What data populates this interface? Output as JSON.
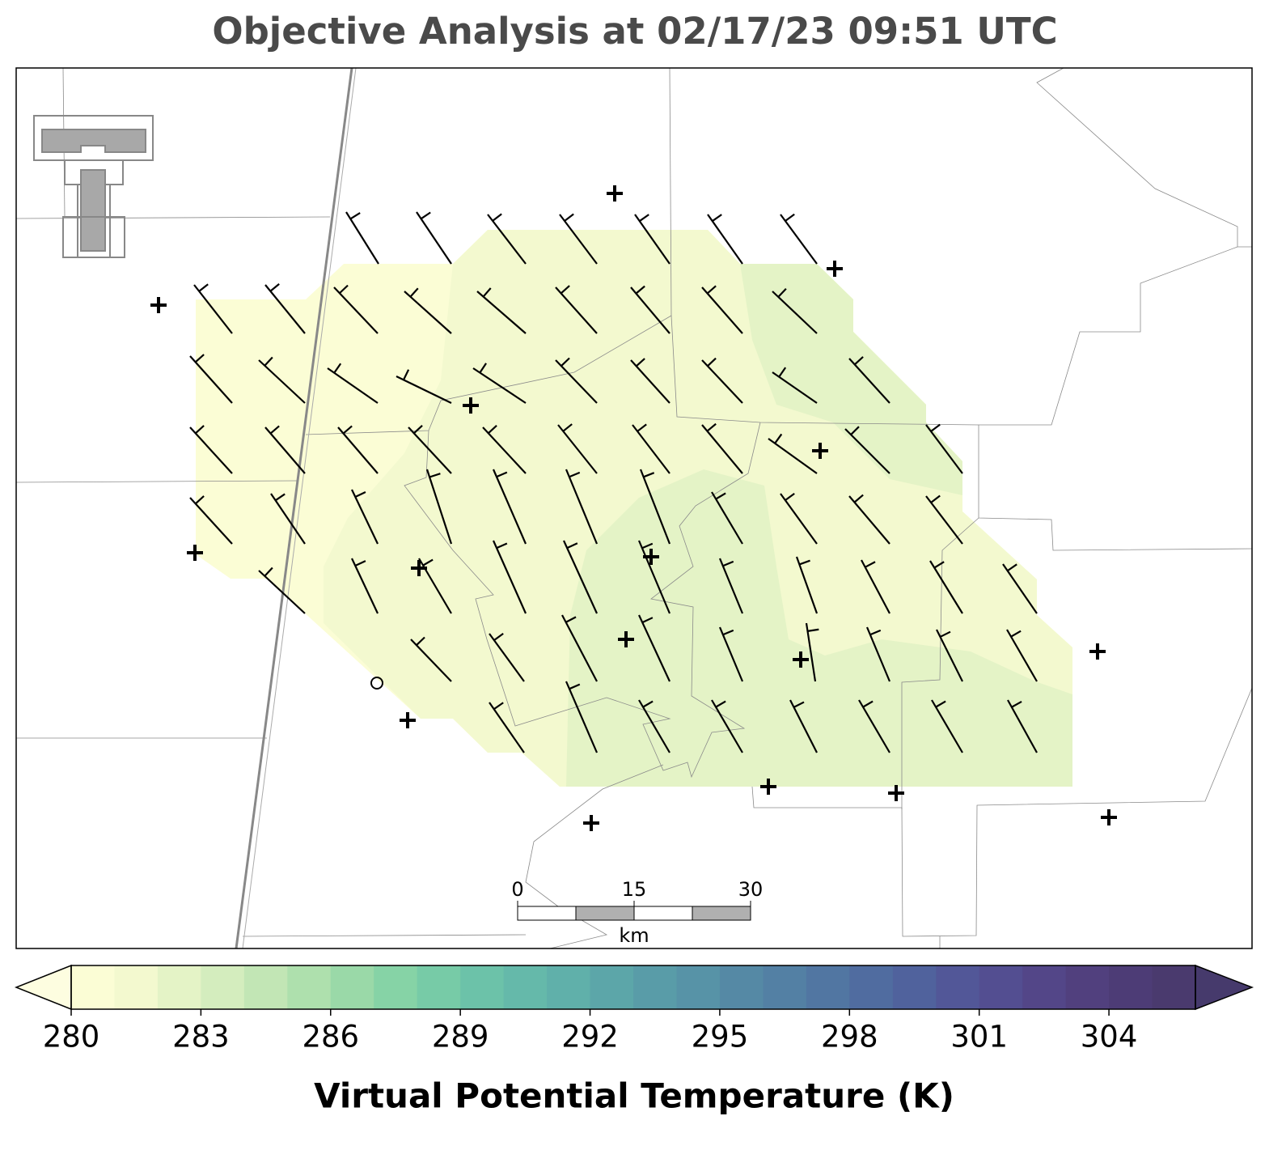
{
  "chart_data": {
    "type": "contour-map",
    "title": "Objective Analysis at 02/17/23 09:51 UTC",
    "colorbar": {
      "label": "Virtual Potential Temperature (K)",
      "lim": [
        280,
        306
      ],
      "ticks": [
        280,
        283,
        286,
        289,
        292,
        295,
        298,
        301,
        304
      ],
      "colors": [
        "#fbfdd5",
        "#f3f9cf",
        "#e4f3c6",
        "#d4edbe",
        "#c2e6b5",
        "#aee0ad",
        "#9ad9a8",
        "#86d3a6",
        "#77cba7",
        "#6cc2a9",
        "#65b9aa",
        "#60b0aa",
        "#5ca6a9",
        "#599ca8",
        "#5793a7",
        "#5589a5",
        "#5380a4",
        "#5176a2",
        "#506ca0",
        "#50629d",
        "#525798",
        "#534e91",
        "#534688",
        "#51407e",
        "#4d3c76",
        "#4a3a6e"
      ],
      "under_color": "#fdfde0",
      "over_color": "#463a6c"
    },
    "scale_bar": {
      "ticks": [
        0,
        15,
        30
      ],
      "unit": "km"
    }
  }
}
